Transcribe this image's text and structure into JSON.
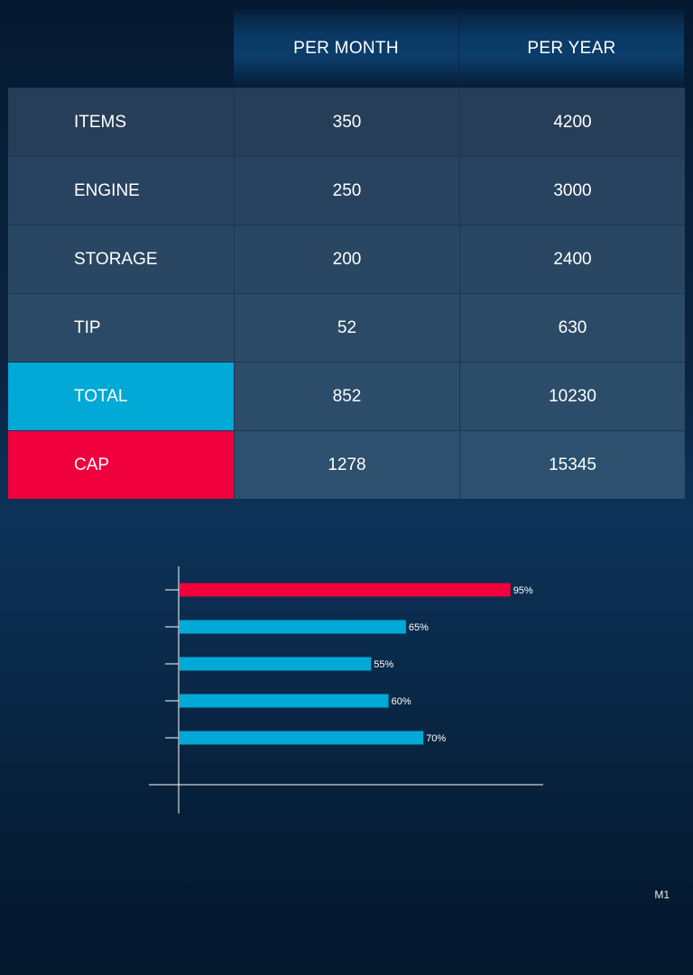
{
  "table": {
    "headers": [
      "PER MONTH",
      "PER YEAR"
    ],
    "rows": [
      {
        "label": "ITEMS",
        "month": "350",
        "year": "4200"
      },
      {
        "label": "ENGINE",
        "month": "250",
        "year": "3000"
      },
      {
        "label": "STORAGE",
        "month": "200",
        "year": "2400"
      },
      {
        "label": "TIP",
        "month": "52",
        "year": "630"
      },
      {
        "label": "TOTAL",
        "month": "852",
        "year": "10230"
      },
      {
        "label": "CAP",
        "month": "1278",
        "year": "15345"
      }
    ]
  },
  "colors": {
    "total_highlight": "#00a9d6",
    "cap_highlight": "#f0003c",
    "bar_primary": "#00a9d6",
    "bar_accent": "#f0003c"
  },
  "chart_data": {
    "type": "bar",
    "orientation": "horizontal",
    "values": [
      95,
      65,
      55,
      60,
      70
    ],
    "labels": [
      "95%",
      "65%",
      "55%",
      "60%",
      "70%"
    ],
    "colors": [
      "#f0003c",
      "#00a9d6",
      "#00a9d6",
      "#00a9d6",
      "#00a9d6"
    ],
    "xlim": [
      0,
      100
    ],
    "grid": false
  },
  "footer": {
    "code": "M1"
  }
}
